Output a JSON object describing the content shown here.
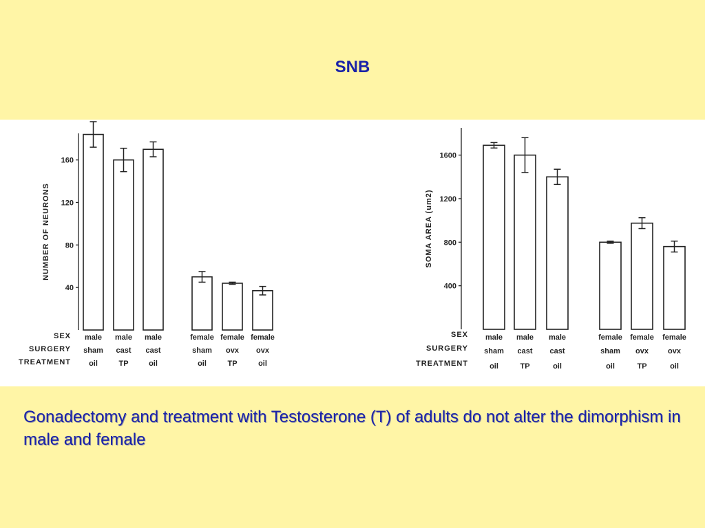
{
  "slide": {
    "title": "SNB",
    "caption": "Gonadectomy and treatment with Testosterone (T) of adults do not alter the dimorphism in male and female"
  },
  "colors": {
    "background": "#fff5a6",
    "title": "#1a22a8",
    "panel": "#ffffff"
  },
  "chart_data": [
    {
      "type": "bar",
      "ylabel": "NUMBER OF NEURONS",
      "yticks": [
        40,
        80,
        120,
        160
      ],
      "ylim": [
        0,
        185
      ],
      "row_labels": [
        "SEX",
        "SURGERY",
        "TREATMENT"
      ],
      "categories": [
        {
          "sex": "male",
          "surgery": "sham",
          "treatment": "oil"
        },
        {
          "sex": "male",
          "surgery": "cast",
          "treatment": "TP"
        },
        {
          "sex": "male",
          "surgery": "cast",
          "treatment": "oil"
        },
        {
          "sex": "female",
          "surgery": "sham",
          "treatment": "oil"
        },
        {
          "sex": "female",
          "surgery": "ovx",
          "treatment": "TP"
        },
        {
          "sex": "female",
          "surgery": "ovx",
          "treatment": "oil"
        }
      ],
      "values": [
        184,
        160,
        170,
        50,
        44,
        37
      ],
      "errors": [
        12,
        11,
        7,
        5,
        1,
        4
      ]
    },
    {
      "type": "bar",
      "ylabel": "SOMA AREA (um2)",
      "yticks": [
        400,
        800,
        1200,
        1600
      ],
      "ylim": [
        0,
        1850
      ],
      "row_labels": [
        "SEX",
        "SURGERY",
        "TREATMENT"
      ],
      "categories": [
        {
          "sex": "male",
          "surgery": "sham",
          "treatment": "oil"
        },
        {
          "sex": "male",
          "surgery": "cast",
          "treatment": "TP"
        },
        {
          "sex": "male",
          "surgery": "cast",
          "treatment": "oil"
        },
        {
          "sex": "female",
          "surgery": "sham",
          "treatment": "oil"
        },
        {
          "sex": "female",
          "surgery": "ovx",
          "treatment": "TP"
        },
        {
          "sex": "female",
          "surgery": "ovx",
          "treatment": "oil"
        }
      ],
      "values": [
        1690,
        1600,
        1400,
        800,
        975,
        760
      ],
      "errors": [
        25,
        160,
        70,
        10,
        50,
        50
      ]
    }
  ]
}
